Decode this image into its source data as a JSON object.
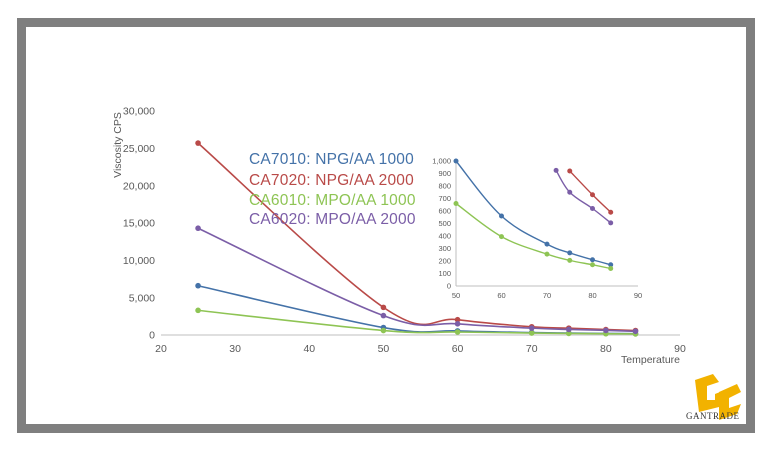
{
  "brand": {
    "logo_text": "GANTRADE",
    "logo_color": "#f2b200"
  },
  "chart_data": [
    {
      "type": "line",
      "title": "",
      "xlabel": "Temperature",
      "ylabel": "Viscosity CPS",
      "xlim": [
        20,
        90
      ],
      "ylim": [
        0,
        30000
      ],
      "xticks": [
        20,
        30,
        40,
        50,
        60,
        70,
        80,
        90
      ],
      "yticks": [
        0,
        5000,
        10000,
        15000,
        20000,
        25000,
        30000
      ],
      "ytick_labels": [
        "0",
        "5,000",
        "10,000",
        "15,000",
        "20,000",
        "25,000",
        "30,000"
      ],
      "grid": false,
      "legend": "center-top",
      "series": [
        {
          "name": "CA7010:  NPG/AA  1000",
          "color": "#4472a8",
          "x": [
            25,
            50,
            60,
            70,
            75,
            80,
            84
          ],
          "y": [
            6600,
            1000,
            550,
            330,
            260,
            210,
            170
          ]
        },
        {
          "name": "CA7020:  NPG/AA  2000",
          "color": "#b94a48",
          "x": [
            25,
            50,
            60,
            70,
            75,
            80,
            84
          ],
          "y": [
            25700,
            3700,
            2050,
            1100,
            920,
            730,
            600
          ]
        },
        {
          "name": "CA6010:  MPO/AA 1000",
          "color": "#8ec454",
          "x": [
            25,
            50,
            60,
            70,
            75,
            80,
            84
          ],
          "y": [
            3300,
            600,
            400,
            260,
            210,
            170,
            140
          ]
        },
        {
          "name": "CA6020:  MPO/AA 2000",
          "color": "#7b5ea7",
          "x": [
            25,
            50,
            60,
            70,
            75,
            80,
            84
          ],
          "y": [
            14300,
            2600,
            1500,
            920,
            750,
            620,
            500
          ]
        }
      ]
    },
    {
      "type": "line",
      "title": "",
      "xlabel": "",
      "ylabel": "",
      "xlim": [
        50,
        90
      ],
      "ylim": [
        0,
        1000
      ],
      "xticks": [
        50,
        60,
        70,
        80,
        90
      ],
      "yticks": [
        0,
        100,
        200,
        300,
        400,
        500,
        600,
        700,
        800,
        900,
        1000
      ],
      "ytick_labels": [
        "0",
        "100",
        "200",
        "300",
        "400",
        "500",
        "600",
        "700",
        "800",
        "900",
        "1,000"
      ],
      "grid": false,
      "series": [
        {
          "color": "#4472a8",
          "x": [
            50,
            60,
            70,
            75,
            80,
            84
          ],
          "y": [
            1000,
            560,
            335,
            265,
            210,
            170
          ]
        },
        {
          "color": "#b94a48",
          "x": [
            75,
            80,
            84
          ],
          "y": [
            920,
            730,
            590
          ]
        },
        {
          "color": "#8ec454",
          "x": [
            50,
            60,
            70,
            75,
            80,
            84
          ],
          "y": [
            660,
            395,
            255,
            205,
            170,
            140
          ]
        },
        {
          "color": "#7b5ea7",
          "x": [
            72,
            75,
            80,
            84
          ],
          "y": [
            925,
            750,
            620,
            505
          ]
        }
      ]
    }
  ]
}
